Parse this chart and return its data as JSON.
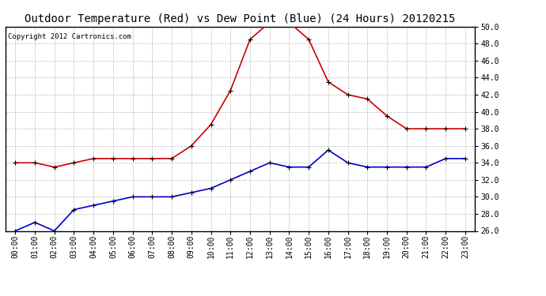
{
  "title": "Outdoor Temperature (Red) vs Dew Point (Blue) (24 Hours) 20120215",
  "copyright_text": "Copyright 2012 Cartronics.com",
  "hours": [
    "00:00",
    "01:00",
    "02:00",
    "03:00",
    "04:00",
    "05:00",
    "06:00",
    "07:00",
    "08:00",
    "09:00",
    "10:00",
    "11:00",
    "12:00",
    "13:00",
    "14:00",
    "15:00",
    "16:00",
    "17:00",
    "18:00",
    "19:00",
    "20:00",
    "21:00",
    "22:00",
    "23:00"
  ],
  "temp_red": [
    34.0,
    34.0,
    33.5,
    34.0,
    34.5,
    34.5,
    34.5,
    34.5,
    34.5,
    36.0,
    38.5,
    42.5,
    48.5,
    50.5,
    50.5,
    48.5,
    43.5,
    42.0,
    41.5,
    39.5,
    38.0,
    38.0,
    38.0,
    38.0
  ],
  "dew_blue": [
    26.0,
    27.0,
    26.0,
    28.5,
    29.0,
    29.5,
    30.0,
    30.0,
    30.0,
    30.5,
    31.0,
    32.0,
    33.0,
    34.0,
    33.5,
    33.5,
    35.5,
    34.0,
    33.5,
    33.5,
    33.5,
    33.5,
    34.5,
    34.5
  ],
  "ylim": [
    26.0,
    50.0
  ],
  "yticks": [
    26.0,
    28.0,
    30.0,
    32.0,
    34.0,
    36.0,
    38.0,
    40.0,
    42.0,
    44.0,
    46.0,
    48.0,
    50.0
  ],
  "red_color": "#cc0000",
  "blue_color": "#0000cc",
  "background_color": "#ffffff",
  "grid_color": "#bbbbbb",
  "title_fontsize": 10,
  "copyright_fontsize": 6.5,
  "tick_fontsize": 7,
  "ytick_fontsize": 7
}
